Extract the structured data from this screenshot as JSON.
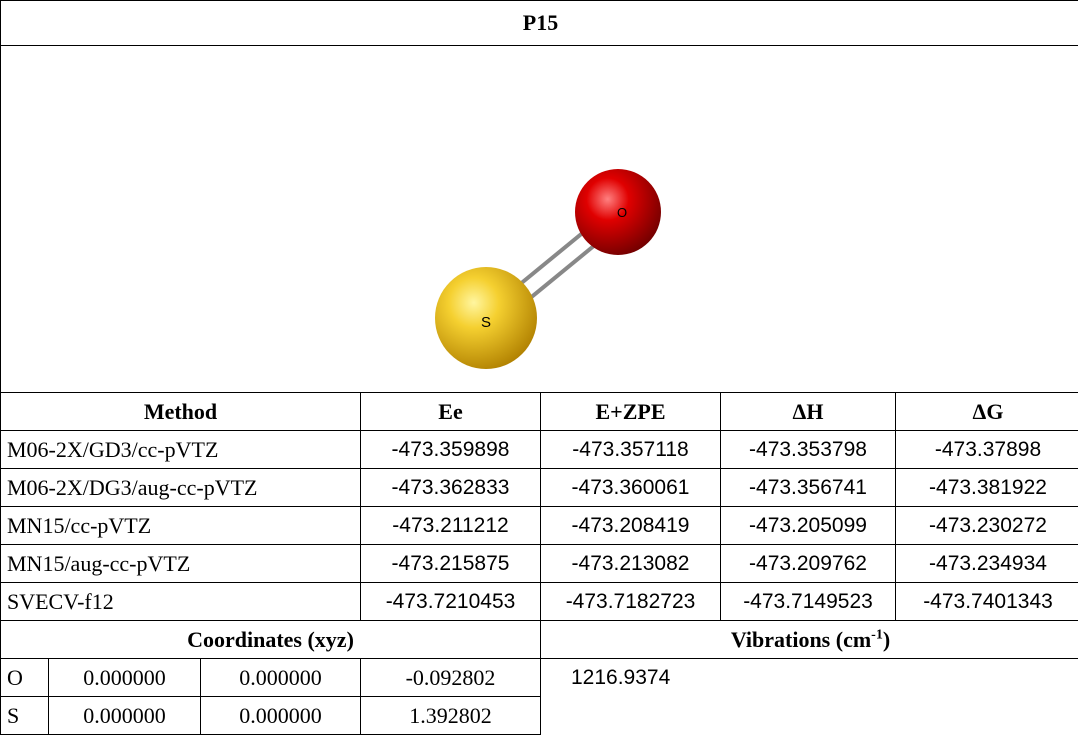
{
  "title": "P15",
  "molecule": {
    "atoms": [
      "O",
      "S"
    ]
  },
  "table": {
    "header": [
      "Method",
      "Ee",
      "E+ZPE",
      "ΔH",
      "ΔG"
    ],
    "rows": [
      [
        "M06-2X/GD3/cc-pVTZ",
        "-473.359898",
        "-473.357118",
        "-473.353798",
        "-473.37898"
      ],
      [
        "M06-2X/DG3/aug-cc-pVTZ",
        "-473.362833",
        "-473.360061",
        "-473.356741",
        "-473.381922"
      ],
      [
        "MN15/cc-pVTZ",
        "-473.211212",
        "-473.208419",
        "-473.205099",
        "-473.230272"
      ],
      [
        "MN15/aug-cc-pVTZ",
        "-473.215875",
        "-473.213082",
        "-473.209762",
        "-473.234934"
      ],
      [
        "SVECV-f12",
        "-473.7210453",
        "-473.7182723",
        "-473.7149523",
        "-473.7401343"
      ]
    ]
  },
  "coordinates": {
    "header": "Coordinates (xyz)",
    "rows": [
      [
        "O",
        "0.000000",
        "0.000000",
        "-0.092802"
      ],
      [
        "S",
        "0.000000",
        "0.000000",
        "1.392802"
      ]
    ]
  },
  "vibrations": {
    "header": "Vibrations (cm",
    "header_sup": "-1",
    "header_end": ")",
    "values": [
      "1216.9374"
    ]
  }
}
